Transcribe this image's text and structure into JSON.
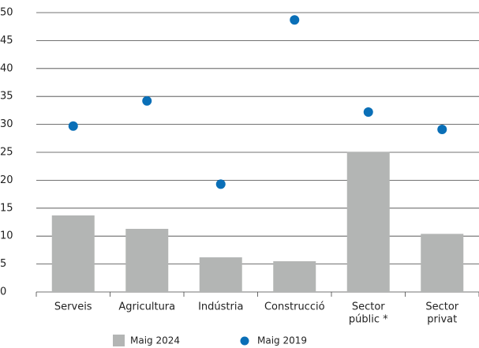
{
  "chart_data": {
    "type": "bar",
    "categories": [
      [
        "Serveis"
      ],
      [
        "Agricultura"
      ],
      [
        "Indústria"
      ],
      [
        "Construcció"
      ],
      [
        "Sector",
        "públic *"
      ],
      [
        "Sector",
        "privat"
      ]
    ],
    "series": [
      {
        "name": "Maig 2024",
        "type": "bar",
        "color": "#b3b5b4",
        "values": [
          13.7,
          11.3,
          6.2,
          5.5,
          25.1,
          10.4
        ]
      },
      {
        "name": "Maig 2019",
        "type": "scatter",
        "color": "#0a6fb7",
        "values": [
          29.7,
          34.2,
          19.3,
          48.7,
          32.2,
          29.1
        ]
      }
    ],
    "ylim": [
      0,
      50
    ],
    "yticks": [
      0,
      5,
      10,
      15,
      20,
      25,
      30,
      35,
      40,
      45,
      50
    ],
    "grid": true
  }
}
